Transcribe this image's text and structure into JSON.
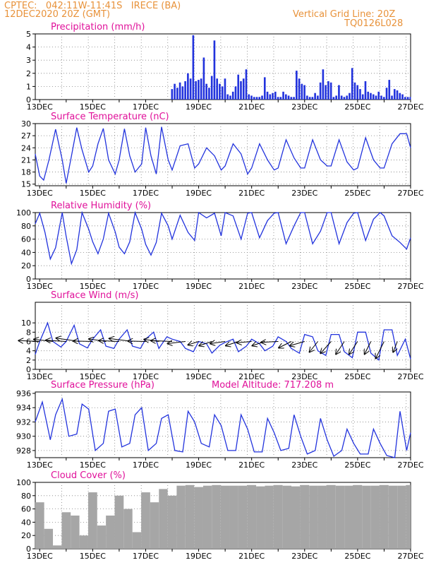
{
  "header": {
    "left_line1": "CPTEC:   042:11W-11:41S   IRECE (BA)",
    "left_line2": "12DEC2020 20Z (GMT)",
    "right_line1": "Vertical Grid Line: 20Z",
    "right_line2": "TQ0126L028"
  },
  "colors": {
    "header": "#e8923a",
    "title": "#e0119a",
    "line": "#2233dd",
    "cloud": "#a6a6a6",
    "grid": "#808080"
  },
  "x_labels": [
    "13DEC",
    "15DEC",
    "17DEC",
    "19DEC",
    "21DEC",
    "23DEC",
    "25DEC",
    "27DEC"
  ],
  "chart_data": [
    {
      "id": "precip",
      "type": "bar",
      "title": "Precipitation (mm/h)",
      "ylim": [
        0,
        5
      ],
      "yticks": [
        "0",
        "1",
        "2",
        "3",
        "4",
        "5"
      ],
      "x_range_days": [
        12.8333,
        27
      ],
      "x_unit": "day of December 2020 (fractional)",
      "series": [
        {
          "x": [
            17.96,
            18.06,
            18.16,
            18.26,
            18.36,
            18.46,
            18.56,
            18.66,
            18.76,
            18.86,
            18.96,
            19.06,
            19.16,
            19.26,
            19.36,
            19.46,
            19.56,
            19.66,
            19.76,
            19.86,
            19.96,
            20.06,
            20.16,
            20.26,
            20.36,
            20.46,
            20.56,
            20.66,
            20.76,
            20.86,
            20.96,
            21.06,
            21.16,
            21.26,
            21.36,
            21.46,
            21.56,
            21.66,
            21.76,
            21.86,
            21.96,
            22.06,
            22.16,
            22.26,
            22.36,
            22.46,
            22.56,
            22.66,
            22.76,
            22.86,
            22.96,
            23.06,
            23.16,
            23.26,
            23.36,
            23.46,
            23.56,
            23.66,
            23.76,
            23.86,
            23.96,
            24.06,
            24.16,
            24.26,
            24.36,
            24.46,
            24.56,
            24.66,
            24.76,
            24.86,
            24.96,
            25.06,
            25.16,
            25.26,
            25.36,
            25.46,
            25.56,
            25.66,
            25.76,
            25.86,
            25.96,
            26.06,
            26.16,
            26.26,
            26.36,
            26.46,
            26.56,
            26.66,
            26.76,
            26.86,
            26.96
          ],
          "values": [
            0.8,
            1.2,
            0.9,
            1.3,
            1.0,
            1.4,
            2.0,
            1.6,
            4.9,
            1.4,
            1.5,
            1.6,
            3.2,
            1.2,
            0.9,
            1.8,
            4.5,
            1.6,
            1.2,
            1.0,
            1.6,
            0.4,
            0.3,
            0.6,
            1.0,
            1.9,
            1.4,
            1.6,
            2.3,
            0.4,
            0.3,
            0.2,
            0.2,
            0.2,
            0.3,
            1.7,
            0.6,
            0.4,
            0.5,
            0.6,
            0.2,
            0.2,
            0.6,
            0.4,
            0.3,
            0.2,
            0.2,
            2.2,
            1.6,
            1.2,
            1.1,
            0.3,
            0.2,
            0.2,
            0.5,
            0.3,
            1.3,
            2.3,
            1.1,
            1.4,
            1.3,
            0.2,
            0.3,
            1.1,
            0.3,
            0.2,
            0.3,
            0.5,
            2.4,
            1.3,
            1.1,
            0.8,
            0.4,
            1.4,
            0.6,
            0.5,
            0.4,
            0.3,
            0.6,
            0.3,
            0.2,
            0.9,
            1.5,
            0.3,
            0.8,
            0.7,
            0.5,
            0.4,
            0.2,
            0.2,
            0.2
          ]
        }
      ]
    },
    {
      "id": "temp",
      "type": "line",
      "title": "Surface Temperature (nC)",
      "ylim": [
        14.6,
        30
      ],
      "yticks": [
        "15",
        "18",
        "21",
        "24",
        "27",
        "30"
      ],
      "ytick_values": [
        15,
        18,
        21,
        24,
        27,
        30
      ],
      "x_range_days": [
        12.8333,
        27
      ],
      "series": [
        {
          "x": [
            12.83,
            13.0,
            13.15,
            13.35,
            13.6,
            13.85,
            14.0,
            14.2,
            14.4,
            14.6,
            14.85,
            15.0,
            15.2,
            15.4,
            15.6,
            15.85,
            16.0,
            16.2,
            16.4,
            16.6,
            16.85,
            17.0,
            17.2,
            17.4,
            17.6,
            17.85,
            18.0,
            18.3,
            18.6,
            18.85,
            19.0,
            19.3,
            19.6,
            19.85,
            20.0,
            20.3,
            20.6,
            20.85,
            21.0,
            21.3,
            21.6,
            21.85,
            22.0,
            22.3,
            22.6,
            22.85,
            23.0,
            23.3,
            23.6,
            23.85,
            24.0,
            24.3,
            24.6,
            24.85,
            25.0,
            25.3,
            25.6,
            25.85,
            26.0,
            26.3,
            26.6,
            26.85,
            27.0
          ],
          "values": [
            22.5,
            17.0,
            16.0,
            21.0,
            28.6,
            21.0,
            15.2,
            22.0,
            29.0,
            23.5,
            18.0,
            19.5,
            25.0,
            28.8,
            21.0,
            17.5,
            21.0,
            28.7,
            22.0,
            18.0,
            20.0,
            29.0,
            22.0,
            17.5,
            29.2,
            21.0,
            18.5,
            24.5,
            25.0,
            19.0,
            20.0,
            24.0,
            22.0,
            18.5,
            19.5,
            25.0,
            22.5,
            17.5,
            19.0,
            25.0,
            21.0,
            18.5,
            19.0,
            26.0,
            21.5,
            19.0,
            19.0,
            26.0,
            21.0,
            19.5,
            19.5,
            26.0,
            20.5,
            18.5,
            19.0,
            26.5,
            21.0,
            19.0,
            19.0,
            25.0,
            27.5,
            27.5,
            24.0
          ]
        }
      ]
    },
    {
      "id": "rh",
      "type": "line",
      "title": "Relative Humidity (%)",
      "ylim": [
        0,
        100
      ],
      "yticks": [
        "0",
        "20",
        "40",
        "60",
        "80",
        "100"
      ],
      "ytick_values": [
        0,
        20,
        40,
        60,
        80,
        100
      ],
      "x_range_days": [
        12.8333,
        27
      ],
      "series": [
        {
          "x": [
            12.83,
            13.0,
            13.2,
            13.4,
            13.6,
            13.85,
            14.0,
            14.2,
            14.4,
            14.6,
            14.85,
            15.0,
            15.2,
            15.4,
            15.6,
            15.85,
            16.0,
            16.2,
            16.4,
            16.6,
            16.85,
            17.0,
            17.2,
            17.4,
            17.6,
            17.85,
            18.0,
            18.3,
            18.6,
            18.85,
            19.0,
            19.3,
            19.6,
            19.85,
            20.0,
            20.3,
            20.6,
            20.85,
            21.0,
            21.3,
            21.6,
            21.85,
            22.0,
            22.3,
            22.6,
            22.85,
            23.0,
            23.3,
            23.6,
            23.85,
            24.0,
            24.3,
            24.6,
            24.85,
            25.0,
            25.3,
            25.6,
            25.85,
            26.0,
            26.3,
            26.6,
            26.85,
            27.0
          ],
          "values": [
            83.0,
            99.0,
            70.0,
            30.0,
            47.0,
            100.0,
            64.0,
            23.0,
            44.0,
            100.0,
            75.0,
            56.0,
            38.0,
            60.0,
            99.0,
            71.0,
            48.0,
            38.0,
            56.0,
            100.0,
            75.0,
            52.0,
            36.0,
            55.0,
            99.0,
            80.0,
            60.0,
            96.0,
            70.0,
            58.0,
            100.0,
            92.0,
            99.0,
            65.0,
            100.0,
            95.0,
            60.0,
            99.0,
            100.0,
            62.0,
            88.0,
            99.0,
            100.0,
            53.0,
            80.0,
            100.0,
            100.0,
            53.0,
            72.0,
            100.0,
            100.0,
            53.0,
            85.0,
            99.0,
            100.0,
            58.0,
            90.0,
            100.0,
            95.0,
            65.0,
            55.0,
            45.0,
            62.0
          ]
        }
      ]
    },
    {
      "id": "wind",
      "type": "line",
      "title": "Surface Wind (m/s)",
      "ylim": [
        0,
        12
      ],
      "yticks": [
        "0",
        "2",
        "4",
        "6",
        "8",
        "10"
      ],
      "ytick_values": [
        0,
        2,
        4,
        6,
        8,
        10
      ],
      "x_range_days": [
        12.8333,
        27
      ],
      "series": [
        {
          "x": [
            12.83,
            13.0,
            13.3,
            13.5,
            13.8,
            14.0,
            14.3,
            14.5,
            14.8,
            15.0,
            15.3,
            15.5,
            15.8,
            16.0,
            16.3,
            16.5,
            16.8,
            17.0,
            17.3,
            17.5,
            17.8,
            18.0,
            18.3,
            18.5,
            18.8,
            19.0,
            19.3,
            19.5,
            19.8,
            20.0,
            20.3,
            20.5,
            20.8,
            21.0,
            21.3,
            21.5,
            21.8,
            22.0,
            22.3,
            22.5,
            22.8,
            23.0,
            23.3,
            23.5,
            23.8,
            24.0,
            24.3,
            24.5,
            24.8,
            25.0,
            25.3,
            25.5,
            25.8,
            26.0,
            26.3,
            26.5,
            26.8,
            27.0
          ],
          "values": [
            3.2,
            6.0,
            10.0,
            6.0,
            4.8,
            6.0,
            9.5,
            5.5,
            4.6,
            6.5,
            8.5,
            5.0,
            4.5,
            6.5,
            8.5,
            5.0,
            4.5,
            6.5,
            8.0,
            4.5,
            7.0,
            6.5,
            6.0,
            4.5,
            3.8,
            6.0,
            5.5,
            3.5,
            5.2,
            5.8,
            6.5,
            3.8,
            5.0,
            6.5,
            5.5,
            4.0,
            5.0,
            7.0,
            6.0,
            4.5,
            3.5,
            7.5,
            7.0,
            4.0,
            3.0,
            7.5,
            7.5,
            3.8,
            2.5,
            8.0,
            8.0,
            3.5,
            2.0,
            8.5,
            8.5,
            3.0,
            6.5,
            2.2
          ]
        }
      ],
      "vectors": {
        "x": [
          13.0,
          13.5,
          14.0,
          14.5,
          15.0,
          15.5,
          16.0,
          16.5,
          17.0,
          17.5,
          18.0,
          18.5,
          19.0,
          19.5,
          20.0,
          20.5,
          21.0,
          21.5,
          22.0,
          22.5,
          23.0,
          23.5,
          24.0,
          24.5,
          25.0,
          25.5,
          26.0,
          26.5
        ],
        "u": [
          -5.0,
          -4.5,
          -4.8,
          -5.5,
          -4.6,
          -4.0,
          -4.8,
          -5.5,
          -4.2,
          -3.5,
          -5.0,
          -4.2,
          -2.5,
          -3.0,
          -3.5,
          -3.0,
          -3.5,
          -3.0,
          -4.0,
          -3.0,
          -3.5,
          -2.0,
          -2.5,
          -2.0,
          -2.0,
          -1.5,
          -2.0,
          -1.0
        ],
        "v": [
          0.2,
          0.5,
          0.3,
          0.8,
          0.1,
          0.6,
          0.2,
          0.7,
          0.1,
          0.5,
          0.2,
          -0.5,
          -0.8,
          -1.0,
          -0.5,
          -1.0,
          -0.3,
          -1.0,
          -0.2,
          -1.5,
          -1.0,
          -2.5,
          -2.8,
          -3.0,
          -3.0,
          -3.0,
          -4.0,
          -2.5
        ]
      }
    },
    {
      "id": "pres",
      "type": "line",
      "title": "Surface Pressure (hPa)",
      "annotation": "Model Altitude: 717.208  m",
      "ylim": [
        927,
        936
      ],
      "yticks": [
        "928",
        "930",
        "932",
        "934",
        "936"
      ],
      "ytick_values": [
        928,
        930,
        932,
        934,
        936
      ],
      "x_range_days": [
        12.8333,
        27
      ],
      "series": [
        {
          "x": [
            12.83,
            13.1,
            13.4,
            13.6,
            13.85,
            14.1,
            14.4,
            14.6,
            14.85,
            15.1,
            15.4,
            15.6,
            15.85,
            16.1,
            16.4,
            16.6,
            16.85,
            17.1,
            17.4,
            17.6,
            17.85,
            18.1,
            18.4,
            18.6,
            18.85,
            19.1,
            19.4,
            19.6,
            19.85,
            20.1,
            20.4,
            20.6,
            20.85,
            21.1,
            21.4,
            21.6,
            21.85,
            22.1,
            22.4,
            22.6,
            22.85,
            23.1,
            23.4,
            23.6,
            23.85,
            24.1,
            24.4,
            24.6,
            24.85,
            25.1,
            25.4,
            25.6,
            25.85,
            26.1,
            26.4,
            26.6,
            26.85,
            27.0
          ],
          "values": [
            932.0,
            934.8,
            929.5,
            933.0,
            935.2,
            930.0,
            930.3,
            934.5,
            933.8,
            928.0,
            929.0,
            933.5,
            933.8,
            928.5,
            929.0,
            933.0,
            934.0,
            928.0,
            929.0,
            932.5,
            933.0,
            928.0,
            927.8,
            933.5,
            932.0,
            929.0,
            928.5,
            933.0,
            931.5,
            928.0,
            928.0,
            933.0,
            931.0,
            927.8,
            927.8,
            932.5,
            930.5,
            928.0,
            928.3,
            933.0,
            930.0,
            927.5,
            928.0,
            932.5,
            929.5,
            927.2,
            928.0,
            931.0,
            929.0,
            927.5,
            927.5,
            931.0,
            929.0,
            927.3,
            927.0,
            933.5,
            928.0,
            930.5
          ]
        }
      ]
    },
    {
      "id": "cloud",
      "type": "bar",
      "title": "Cloud Cover (%)",
      "ylim": [
        0,
        100
      ],
      "yticks": [
        "0",
        "20",
        "40",
        "60",
        "80",
        "100"
      ],
      "ytick_values": [
        0,
        20,
        40,
        60,
        80,
        100
      ],
      "x_range_days": [
        12.8333,
        27
      ],
      "series": [
        {
          "x": [
            12.83,
            13.17,
            13.5,
            13.83,
            14.17,
            14.5,
            14.83,
            15.17,
            15.5,
            15.83,
            16.17,
            16.5,
            16.83,
            17.17,
            17.5,
            17.83,
            18.17,
            18.5,
            18.83,
            19.17,
            19.5,
            19.83,
            20.17,
            20.5,
            20.83,
            21.17,
            21.5,
            21.83,
            22.17,
            22.5,
            22.83,
            23.17,
            23.5,
            23.83,
            24.17,
            24.5,
            24.83,
            25.17,
            25.5,
            25.83,
            26.17,
            26.5,
            26.83
          ],
          "values": [
            70,
            30,
            5,
            55,
            50,
            20,
            85,
            35,
            50,
            80,
            60,
            25,
            85,
            70,
            90,
            80,
            95,
            96,
            93,
            95,
            96,
            95,
            95,
            95,
            96,
            94,
            95,
            96,
            95,
            94,
            96,
            95,
            95,
            96,
            95,
            95,
            96,
            95,
            95,
            96,
            95,
            95,
            96
          ]
        }
      ]
    }
  ]
}
